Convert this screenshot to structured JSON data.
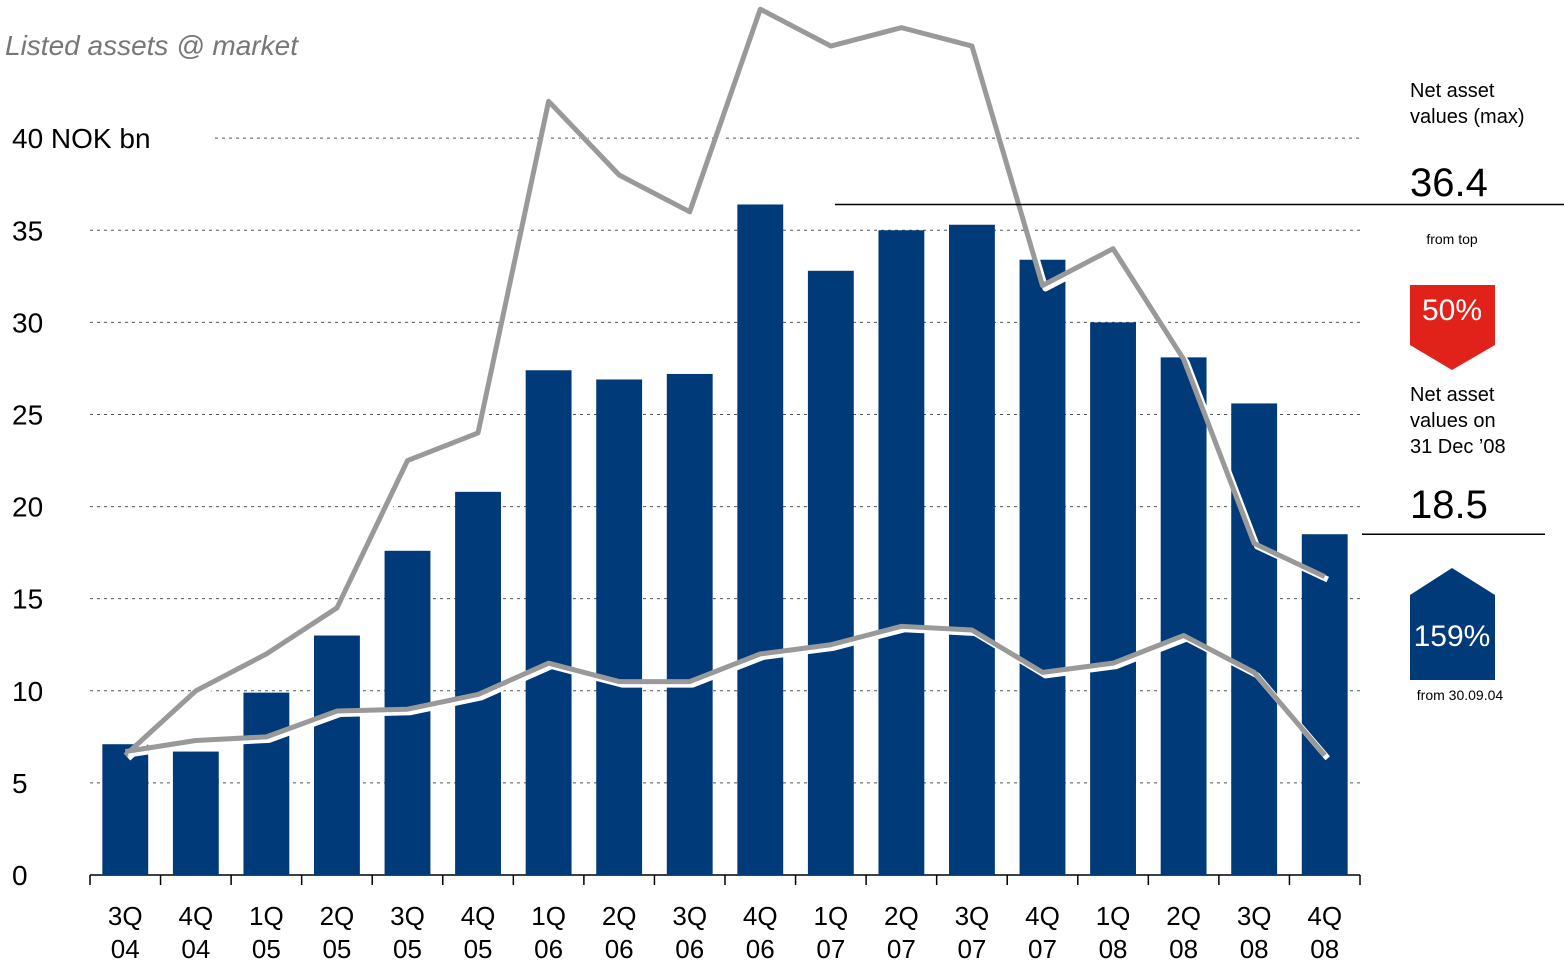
{
  "chart_data": {
    "type": "bar",
    "title": "Listed assets @ market",
    "categories": [
      "3Q\n04",
      "4Q\n04",
      "1Q\n05",
      "2Q\n05",
      "3Q\n05",
      "4Q\n05",
      "1Q\n06",
      "2Q\n06",
      "3Q\n06",
      "4Q\n06",
      "1Q\n07",
      "2Q\n07",
      "3Q\n07",
      "4Q\n07",
      "1Q\n08",
      "2Q\n08",
      "3Q\n08",
      "4Q\n08"
    ],
    "series": [
      {
        "type": "bar",
        "color": "#003a78",
        "values": [
          7.1,
          6.7,
          9.9,
          13.0,
          17.6,
          20.8,
          27.4,
          26.9,
          27.2,
          36.4,
          32.8,
          35.0,
          35.3,
          33.4,
          30.0,
          28.1,
          25.6,
          18.5
        ]
      },
      {
        "type": "line",
        "color": "#999999",
        "values": [
          6.5,
          10.0,
          12.0,
          14.5,
          22.5,
          24.0,
          42.0,
          38.0,
          36.0,
          47.0,
          45.0,
          46.0,
          45.0,
          32.0,
          34.0,
          28.0,
          18.0,
          16.2
        ]
      },
      {
        "type": "line",
        "color": "#999999",
        "values": [
          6.7,
          7.3,
          7.5,
          8.9,
          9.0,
          9.8,
          11.5,
          10.5,
          10.5,
          12.0,
          12.5,
          13.5,
          13.3,
          11.0,
          11.5,
          13.0,
          11.0,
          6.5
        ]
      }
    ],
    "ylim": [
      0,
      47.5
    ],
    "yticks": [
      0,
      5,
      10,
      15,
      20,
      25,
      30,
      35,
      {
        "value": 40,
        "label": "40 NOK bn"
      }
    ],
    "grid": true,
    "annotations": {
      "max_label": "Net asset\nvalues (max)",
      "max_value": 36.4,
      "top_note": "from top",
      "top_change": "50%",
      "end_label": "Net asset\nvalues on\n31 Dec ’08",
      "end_value": 18.5,
      "start_change": "159%",
      "start_note": "from 30.09.04"
    }
  }
}
